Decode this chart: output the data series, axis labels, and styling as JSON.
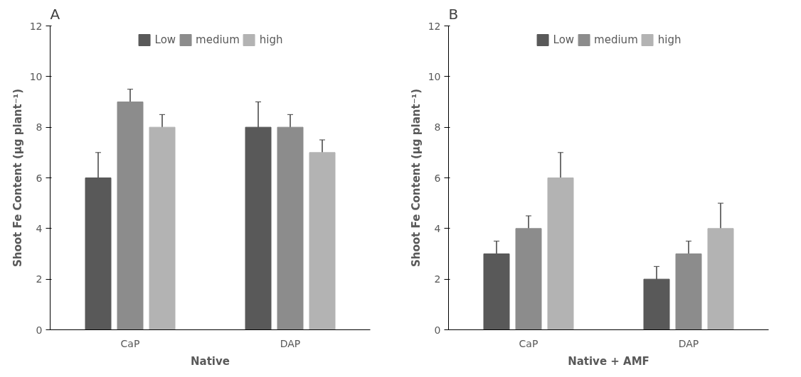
{
  "chart_data": [
    {
      "type": "bar",
      "title": "A",
      "xlabel": "Native",
      "ylabel": "Shoot Fe Content (µg plant⁻¹)",
      "categories": [
        "CaP",
        "DAP"
      ],
      "ylim": [
        0,
        12
      ],
      "yticks": [
        0,
        2,
        4,
        6,
        8,
        10,
        12
      ],
      "grid": false,
      "legend": "top",
      "series": [
        {
          "name": "Low",
          "color": "#595959",
          "values": [
            6,
            8
          ],
          "errors": [
            1,
            1
          ]
        },
        {
          "name": "medium",
          "color": "#8c8c8c",
          "values": [
            9,
            8
          ],
          "errors": [
            0.5,
            0.5
          ]
        },
        {
          "name": "high",
          "color": "#b3b3b3",
          "values": [
            8,
            7
          ],
          "errors": [
            0.5,
            0.5
          ]
        }
      ]
    },
    {
      "type": "bar",
      "title": "B",
      "xlabel": "Native + AMF",
      "ylabel": "Shoot Fe Content (µg plant⁻¹)",
      "categories": [
        "CaP",
        "DAP"
      ],
      "ylim": [
        0,
        12
      ],
      "yticks": [
        0,
        2,
        4,
        6,
        8,
        10,
        12
      ],
      "grid": false,
      "legend": "top",
      "series": [
        {
          "name": "Low",
          "color": "#595959",
          "values": [
            3,
            2
          ],
          "errors": [
            0.5,
            0.5
          ]
        },
        {
          "name": "medium",
          "color": "#8c8c8c",
          "values": [
            4,
            3
          ],
          "errors": [
            0.5,
            0.5
          ]
        },
        {
          "name": "high",
          "color": "#b3b3b3",
          "values": [
            6,
            4
          ],
          "errors": [
            1,
            1
          ]
        }
      ]
    }
  ]
}
